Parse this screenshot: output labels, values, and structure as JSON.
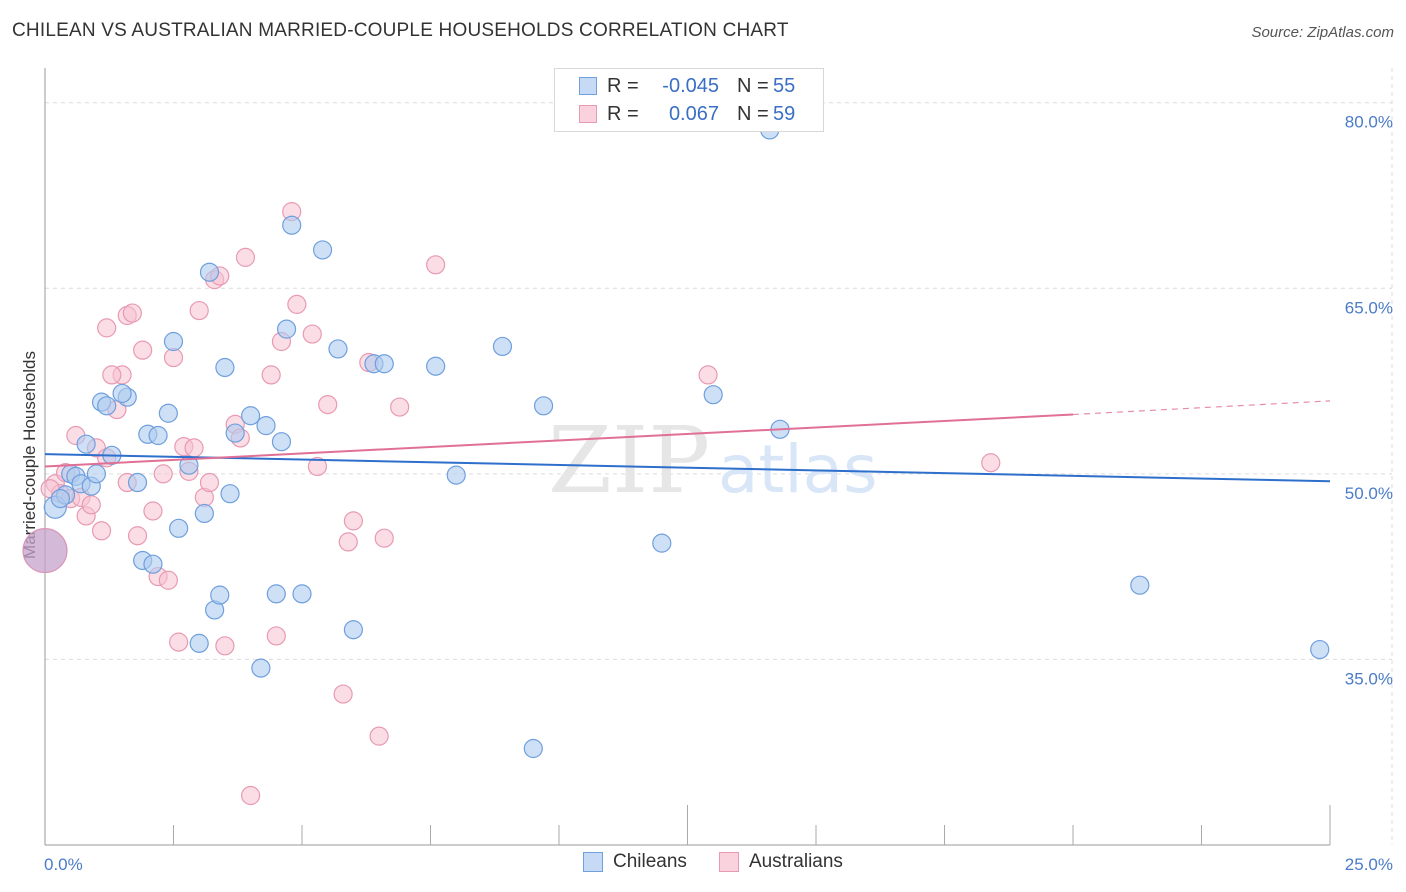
{
  "title": "CHILEAN VS AUSTRALIAN MARRIED-COUPLE HOUSEHOLDS CORRELATION CHART",
  "source": "Source: ZipAtlas.com",
  "watermark": {
    "zip": "ZIP",
    "atlas": "atlas"
  },
  "colors": {
    "chileans_fill": "#aecbf0",
    "chileans_stroke": "#6f9fdc",
    "chileans_line": "#2e6fcc",
    "australians_fill": "#f7c1d2",
    "australians_stroke": "#e89ab3",
    "australians_line": "#e07096",
    "grid": "#dcdcdc",
    "tick_label": "#4a7cc7"
  },
  "legend_top": {
    "rows": [
      {
        "label": "R =",
        "r": "-0.045",
        "n_label": "N =",
        "n": "55"
      },
      {
        "label": "R =",
        "r": "0.067",
        "n_label": "N =",
        "n": "59"
      }
    ]
  },
  "legend_bottom": [
    "Chileans",
    "Australians"
  ],
  "chart_data": {
    "type": "scatter",
    "title": "CHILEAN VS AUSTRALIAN MARRIED-COUPLE HOUSEHOLDS CORRELATION CHART",
    "xlabel": "",
    "ylabel": "Married-couple Households",
    "xlim": [
      0,
      25
    ],
    "ylim": [
      20,
      82
    ],
    "x_ticks": [
      "0.0%",
      "25.0%"
    ],
    "y_ticks": [
      {
        "value": 80,
        "label": "80.0%"
      },
      {
        "value": 65,
        "label": "65.0%"
      },
      {
        "value": 50,
        "label": "50.0%"
      },
      {
        "value": 35,
        "label": "35.0%"
      }
    ],
    "grid": true,
    "legend_position": "top-center",
    "series": [
      {
        "name": "Chileans",
        "r": -0.045,
        "n": 55,
        "trend": {
          "x": [
            0,
            25
          ],
          "y": [
            51.6,
            49.4
          ]
        },
        "points": [
          [
            0.2,
            47.3
          ],
          [
            0.4,
            48.3
          ],
          [
            0.5,
            50.0
          ],
          [
            0.6,
            49.8
          ],
          [
            0.7,
            49.2
          ],
          [
            0.8,
            52.4
          ],
          [
            0.9,
            49.0
          ],
          [
            1.0,
            50.0
          ],
          [
            1.1,
            55.8
          ],
          [
            1.3,
            51.5
          ],
          [
            1.2,
            55.5
          ],
          [
            1.6,
            56.2
          ],
          [
            1.5,
            56.5
          ],
          [
            1.8,
            49.3
          ],
          [
            2.0,
            53.2
          ],
          [
            2.2,
            53.1
          ],
          [
            1.9,
            43.0
          ],
          [
            2.1,
            42.7
          ],
          [
            2.4,
            54.9
          ],
          [
            2.5,
            60.7
          ],
          [
            2.6,
            45.6
          ],
          [
            2.8,
            50.7
          ],
          [
            3.0,
            36.3
          ],
          [
            3.1,
            46.8
          ],
          [
            3.2,
            66.3
          ],
          [
            3.3,
            39.0
          ],
          [
            3.4,
            40.2
          ],
          [
            3.5,
            58.6
          ],
          [
            3.6,
            48.4
          ],
          [
            3.7,
            53.3
          ],
          [
            4.0,
            54.7
          ],
          [
            4.2,
            34.3
          ],
          [
            4.3,
            53.9
          ],
          [
            4.5,
            40.3
          ],
          [
            4.6,
            52.6
          ],
          [
            4.7,
            61.7
          ],
          [
            4.8,
            70.1
          ],
          [
            5.0,
            40.3
          ],
          [
            5.4,
            68.1
          ],
          [
            5.7,
            60.1
          ],
          [
            6.0,
            37.4
          ],
          [
            6.4,
            58.9
          ],
          [
            6.6,
            58.9
          ],
          [
            7.6,
            58.7
          ],
          [
            8.0,
            49.9
          ],
          [
            8.9,
            60.3
          ],
          [
            9.5,
            27.8
          ],
          [
            9.7,
            55.5
          ],
          [
            12.0,
            44.4
          ],
          [
            13.0,
            56.4
          ],
          [
            14.3,
            53.6
          ],
          [
            14.1,
            77.8
          ],
          [
            21.3,
            41.0
          ],
          [
            24.8,
            35.8
          ],
          [
            0.3,
            48.0
          ]
        ]
      },
      {
        "name": "Australians",
        "r": 0.067,
        "n": 59,
        "trend": {
          "x": [
            0,
            20
          ],
          "y": [
            50.6,
            54.8
          ]
        },
        "trend_dashed": {
          "x": [
            20,
            25
          ],
          "y": [
            54.8,
            55.9
          ]
        },
        "points": [
          [
            0.0,
            43.8
          ],
          [
            0.2,
            49.2
          ],
          [
            0.3,
            48.4
          ],
          [
            0.4,
            50.1
          ],
          [
            0.5,
            48.0
          ],
          [
            0.6,
            53.1
          ],
          [
            0.7,
            48.1
          ],
          [
            0.8,
            46.6
          ],
          [
            0.9,
            47.5
          ],
          [
            1.0,
            52.1
          ],
          [
            1.1,
            45.4
          ],
          [
            1.2,
            51.3
          ],
          [
            1.2,
            61.8
          ],
          [
            1.4,
            55.2
          ],
          [
            1.5,
            58.0
          ],
          [
            1.6,
            49.3
          ],
          [
            1.6,
            62.8
          ],
          [
            1.7,
            63.0
          ],
          [
            1.8,
            45.0
          ],
          [
            1.9,
            60.0
          ],
          [
            2.1,
            47.0
          ],
          [
            2.2,
            41.7
          ],
          [
            2.3,
            50.0
          ],
          [
            2.4,
            41.4
          ],
          [
            2.5,
            59.4
          ],
          [
            2.6,
            36.4
          ],
          [
            2.7,
            52.2
          ],
          [
            2.8,
            50.2
          ],
          [
            3.0,
            63.2
          ],
          [
            3.1,
            48.1
          ],
          [
            3.2,
            49.3
          ],
          [
            3.3,
            65.7
          ],
          [
            3.4,
            66.0
          ],
          [
            3.5,
            36.1
          ],
          [
            3.7,
            54.0
          ],
          [
            3.8,
            52.9
          ],
          [
            3.9,
            67.5
          ],
          [
            4.0,
            24.0
          ],
          [
            4.4,
            58.0
          ],
          [
            4.5,
            36.9
          ],
          [
            4.6,
            60.7
          ],
          [
            4.8,
            71.2
          ],
          [
            4.9,
            63.7
          ],
          [
            5.2,
            61.3
          ],
          [
            5.3,
            50.6
          ],
          [
            5.5,
            55.6
          ],
          [
            5.8,
            32.2
          ],
          [
            5.9,
            44.5
          ],
          [
            6.0,
            46.2
          ],
          [
            6.3,
            59.0
          ],
          [
            6.5,
            28.8
          ],
          [
            6.6,
            44.8
          ],
          [
            6.9,
            55.4
          ],
          [
            7.6,
            66.9
          ],
          [
            12.9,
            58.0
          ],
          [
            18.4,
            50.9
          ],
          [
            0.1,
            48.8
          ],
          [
            1.3,
            58.0
          ],
          [
            2.9,
            52.1
          ]
        ]
      }
    ]
  }
}
